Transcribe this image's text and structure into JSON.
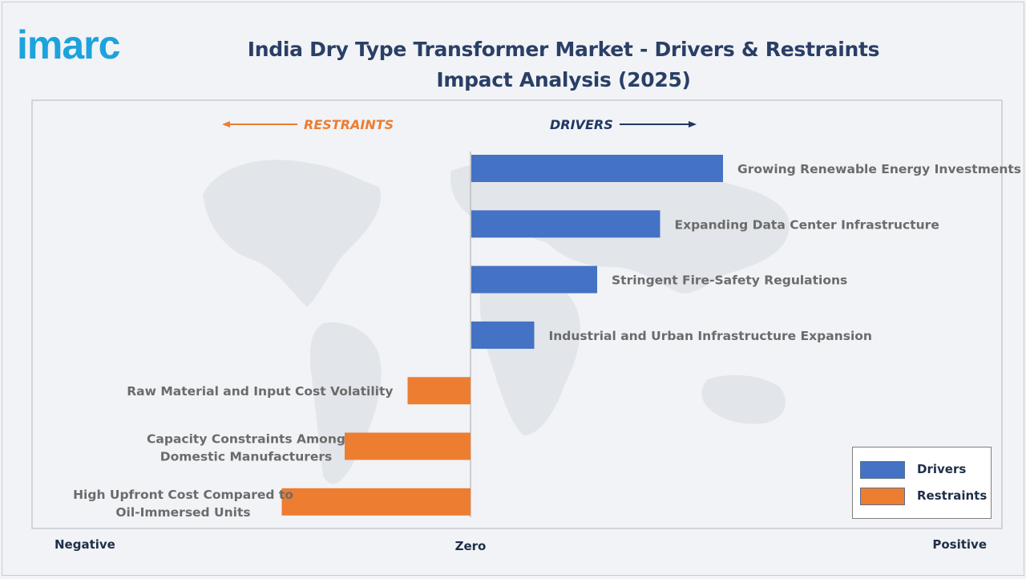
{
  "logo": {
    "text": "imarc",
    "color": "#1ca3dc"
  },
  "title": "India Dry Type Transformer Market - Drivers & Restraints Impact Analysis (2025)",
  "direction_labels": {
    "restraints": "RESTRAINTS",
    "drivers": "DRIVERS"
  },
  "colors": {
    "drivers": "#4472c4",
    "restraints": "#ed7d31",
    "title": "#2a3f66",
    "restraints_text": "#ed7d31",
    "drivers_text": "#203864"
  },
  "axis": {
    "negative": "Negative",
    "zero": "Zero",
    "positive": "Positive"
  },
  "legend": {
    "drivers": "Drivers",
    "restraints": "Restraints",
    "placement": "bottom-right"
  },
  "chart_data": {
    "type": "bar",
    "orientation": "horizontal",
    "title": "India Dry Type Transformer Market - Drivers & Restraints Impact Analysis (2025)",
    "xlim": [
      -3,
      4
    ],
    "grid": false,
    "categories": [
      "Growing Renewable Energy Investments",
      "Expanding Data Center Infrastructure",
      "Stringent Fire-Safety Regulations",
      "Industrial and Urban Infrastructure Expansion",
      "Raw Material and Input Cost Volatility",
      "Capacity Constraints Among Domestic Manufacturers",
      "High Upfront Cost Compared to Oil-Immersed Units"
    ],
    "series": [
      {
        "name": "Drivers",
        "values": [
          4,
          3,
          2,
          1,
          null,
          null,
          null
        ]
      },
      {
        "name": "Restraints",
        "values": [
          null,
          null,
          null,
          null,
          -1,
          -2,
          -3
        ]
      }
    ]
  }
}
